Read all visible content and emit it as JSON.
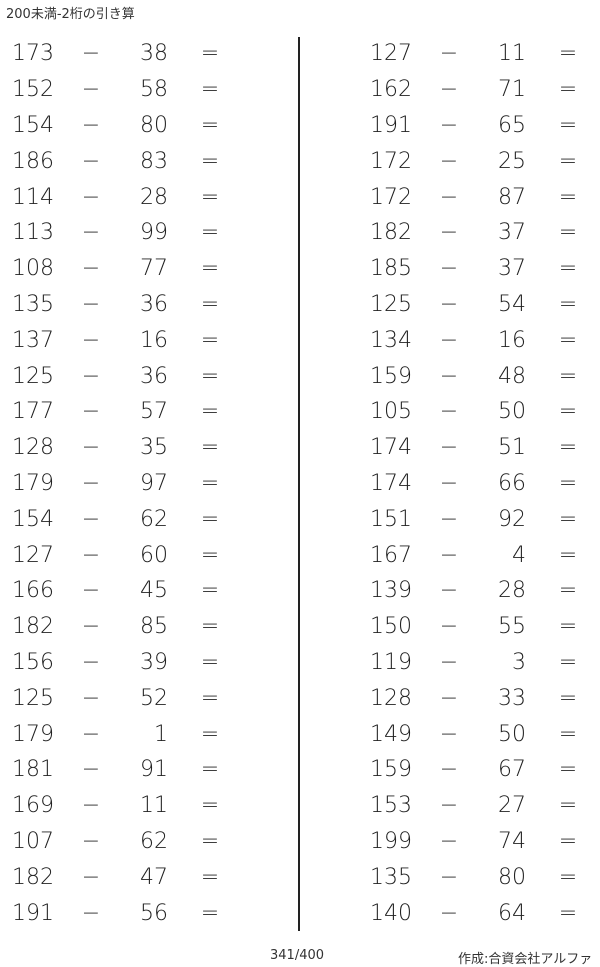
{
  "title": "200未満-2桁の引き算",
  "operator": "−",
  "equals": "=",
  "left_problems": [
    [
      "173",
      "38"
    ],
    [
      "152",
      "58"
    ],
    [
      "154",
      "80"
    ],
    [
      "186",
      "83"
    ],
    [
      "114",
      "28"
    ],
    [
      "113",
      "99"
    ],
    [
      "108",
      "77"
    ],
    [
      "135",
      "36"
    ],
    [
      "137",
      "16"
    ],
    [
      "125",
      "36"
    ],
    [
      "177",
      "57"
    ],
    [
      "128",
      "35"
    ],
    [
      "179",
      "97"
    ],
    [
      "154",
      "62"
    ],
    [
      "127",
      "60"
    ],
    [
      "166",
      "45"
    ],
    [
      "182",
      "85"
    ],
    [
      "156",
      "39"
    ],
    [
      "125",
      "52"
    ],
    [
      "179",
      "1"
    ],
    [
      "181",
      "91"
    ],
    [
      "169",
      "11"
    ],
    [
      "107",
      "62"
    ],
    [
      "182",
      "47"
    ],
    [
      "191",
      "56"
    ]
  ],
  "right_problems": [
    [
      "127",
      "11"
    ],
    [
      "162",
      "71"
    ],
    [
      "191",
      "65"
    ],
    [
      "172",
      "25"
    ],
    [
      "172",
      "87"
    ],
    [
      "182",
      "37"
    ],
    [
      "185",
      "37"
    ],
    [
      "125",
      "54"
    ],
    [
      "134",
      "16"
    ],
    [
      "159",
      "48"
    ],
    [
      "105",
      "50"
    ],
    [
      "174",
      "51"
    ],
    [
      "174",
      "66"
    ],
    [
      "151",
      "92"
    ],
    [
      "167",
      "4"
    ],
    [
      "139",
      "28"
    ],
    [
      "150",
      "55"
    ],
    [
      "119",
      "3"
    ],
    [
      "128",
      "33"
    ],
    [
      "149",
      "50"
    ],
    [
      "159",
      "67"
    ],
    [
      "153",
      "27"
    ],
    [
      "199",
      "74"
    ],
    [
      "135",
      "80"
    ],
    [
      "140",
      "64"
    ]
  ],
  "footer": {
    "page": "341/400",
    "credit": "作成:合資会社アルファ"
  }
}
